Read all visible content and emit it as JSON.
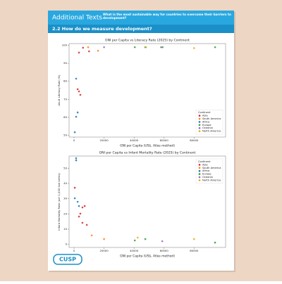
{
  "header": {
    "title": "Additional Texts",
    "question": "What is the most sustainable way for countries to overcome their barriers to development?",
    "section": "2.2 How do we measure development?"
  },
  "logo": "CUSP",
  "chart_data": [
    {
      "type": "scatter",
      "title": "GNI per Capita vs Literacy Rate (2025) by Continent",
      "x_label": "GNI per Capita (US$, Atlas method)",
      "y_label": "Adult Literacy Rate (%)",
      "xlim": [
        -3300,
        101000
      ],
      "xticks": [
        0,
        20000,
        40000,
        60000,
        80000
      ],
      "ylim": [
        49,
        101
      ],
      "yticks": [
        50,
        60,
        70,
        80,
        90,
        100
      ],
      "grid": false,
      "legend_title": "Continent",
      "legend_position": "lower right",
      "series": [
        {
          "name": "Asia",
          "color": "#d62728",
          "x": [
            6000,
            3300,
            10000,
            2400,
            3300,
            4200
          ],
          "values": [
            98.7,
            96,
            96.7,
            75.6,
            74.4,
            72.5
          ]
        },
        {
          "name": "South America",
          "color": "#ff7f0e",
          "x": [
            9400,
            16000
          ],
          "values": [
            99,
            97
          ]
        },
        {
          "name": "Africa",
          "color": "#1f77b4",
          "x": [
            1400,
            2400,
            1400,
            500
          ],
          "values": [
            81.5,
            62.7,
            60.3,
            51.7
          ]
        },
        {
          "name": "Europe",
          "color": "#2ca02c",
          "x": [
            40500,
            47500,
            59000,
            94000
          ],
          "values": [
            99,
            99,
            99,
            99
          ]
        },
        {
          "name": "Oceania",
          "color": "#9467bd",
          "x": [
            20000,
            58000
          ],
          "values": [
            99,
            99
          ]
        },
        {
          "name": "North America",
          "color": "#e6a817",
          "x": [
            80000,
            48000
          ],
          "values": [
            98.5,
            99
          ]
        }
      ]
    },
    {
      "type": "scatter",
      "title": "GNI per Capita vs Infant Mortality Rate (2025) by Continent",
      "x_label": "GNI per Capita (US$, Atlas method)",
      "y_label": "Infant Mortality Rate (per 1,000 live births)",
      "xlim": [
        -3300,
        101000
      ],
      "xticks": [
        0,
        20000,
        40000,
        60000,
        80000
      ],
      "ylim": [
        -2,
        58
      ],
      "yticks": [
        0,
        10,
        20,
        30,
        40,
        50
      ],
      "grid": false,
      "legend_title": "Continent",
      "legend_position": "upper right",
      "series": [
        {
          "name": "Asia",
          "color": "#d62728",
          "x": [
            500,
            5600,
            7100,
            5600,
            8500,
            3300,
            4200
          ],
          "values": [
            37.2,
            24.3,
            25.2,
            14.2,
            12.8,
            18.3,
            20.2
          ]
        },
        {
          "name": "South America",
          "color": "#ff7f0e",
          "x": [
            11800,
            20000
          ],
          "values": [
            5.9,
            3.5
          ]
        },
        {
          "name": "Africa",
          "color": "#1f77b4",
          "x": [
            1400,
            1400,
            2400,
            3300,
            500
          ],
          "values": [
            56.6,
            55.2,
            28,
            25.2,
            30.3
          ]
        },
        {
          "name": "Europe",
          "color": "#2ca02c",
          "x": [
            40500,
            47500,
            94000
          ],
          "values": [
            2.6,
            3.5,
            1.2
          ]
        },
        {
          "name": "Oceania",
          "color": "#9467bd",
          "x": [
            58800
          ],
          "values": [
            2.1
          ]
        },
        {
          "name": "North America",
          "color": "#e6a817",
          "x": [
            80000,
            42400
          ],
          "values": [
            3.5,
            4.5
          ]
        }
      ]
    }
  ]
}
